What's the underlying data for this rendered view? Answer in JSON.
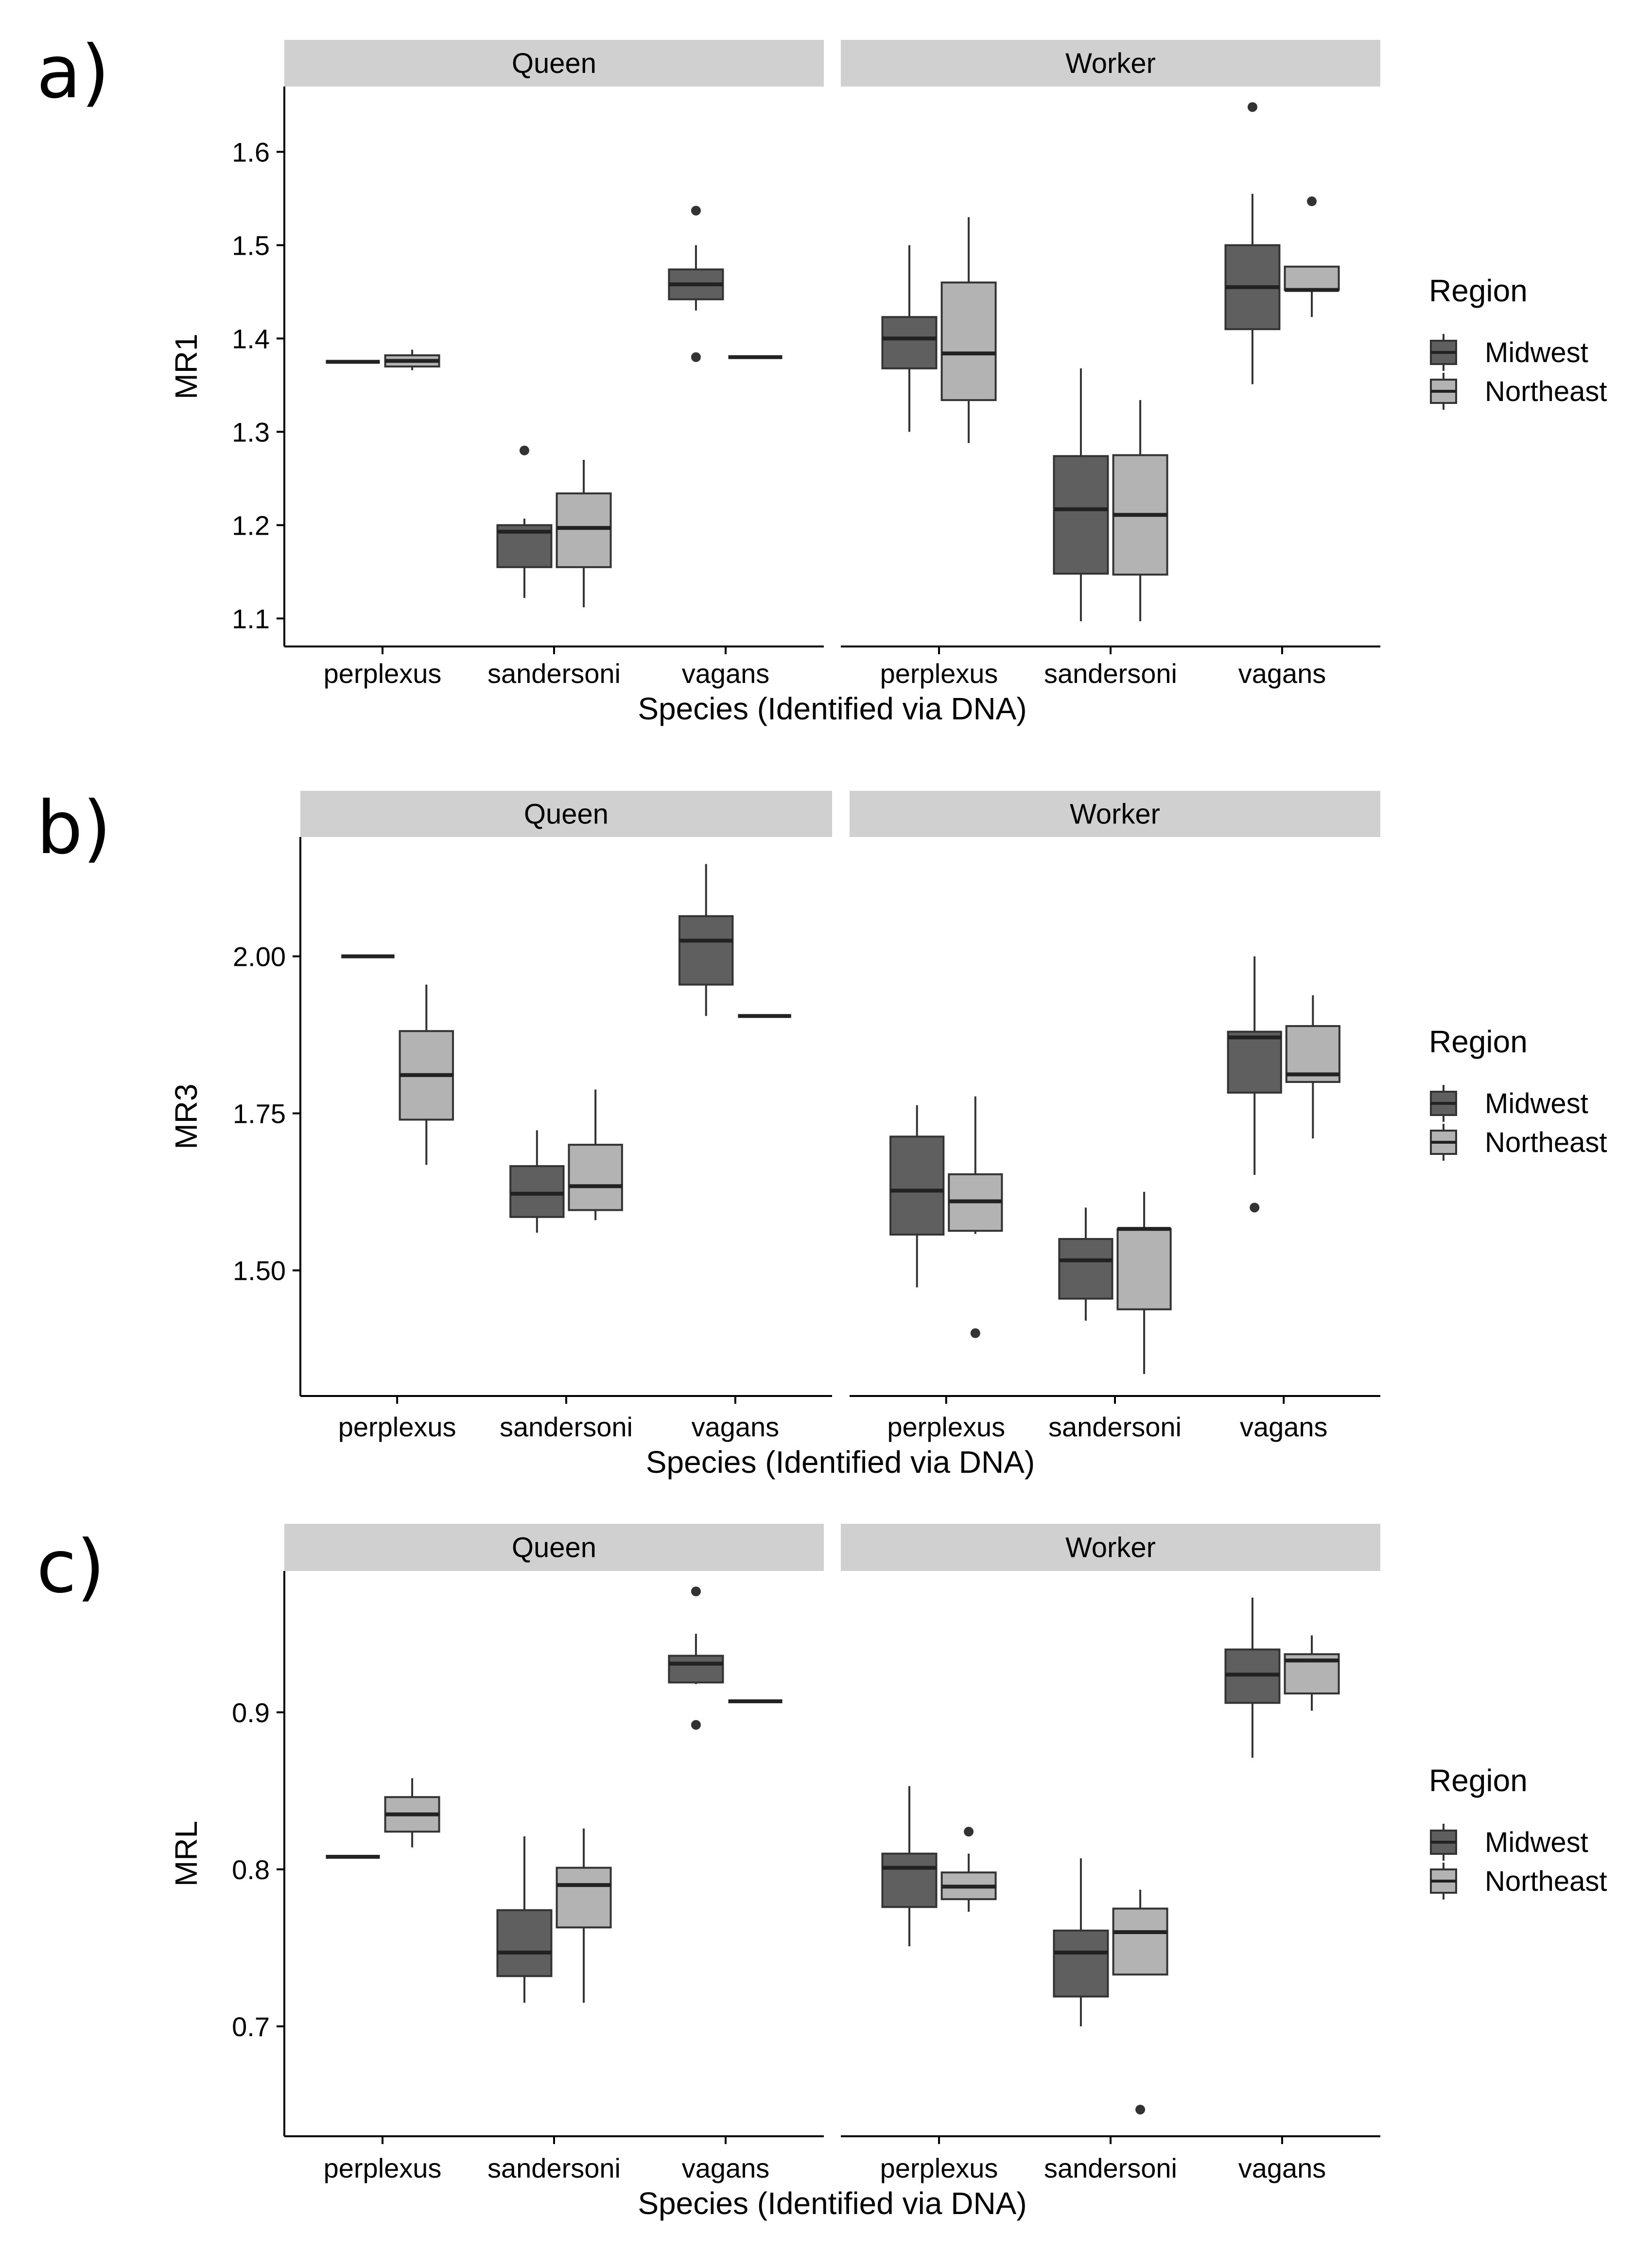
{
  "legend": {
    "title": "Region",
    "entries": [
      {
        "label": "Midwest",
        "color": "#5f5f5f"
      },
      {
        "label": "Northeast",
        "color": "#b3b3b3"
      }
    ]
  },
  "chart_data": [
    {
      "type": "box",
      "panel_label": "a)",
      "ylabel": "MR1",
      "xlabel": "Species (Identified via DNA)",
      "facets": [
        "Queen",
        "Worker"
      ],
      "categories": [
        "perplexus",
        "sandersoni",
        "vagans"
      ],
      "yticks": [
        1.1,
        1.2,
        1.3,
        1.4,
        1.5,
        1.6
      ],
      "ytick_labels": [
        "1.1",
        "1.2",
        "1.3",
        "1.4",
        "1.5",
        "1.6"
      ],
      "ylim": [
        1.07,
        1.67
      ],
      "boxes": [
        {
          "facet": "Queen",
          "category": "perplexus",
          "region": "Midwest",
          "min": 1.375,
          "q1": 1.375,
          "median": 1.375,
          "q3": 1.375,
          "max": 1.375,
          "outliers": []
        },
        {
          "facet": "Queen",
          "category": "perplexus",
          "region": "Northeast",
          "min": 1.366,
          "q1": 1.37,
          "median": 1.376,
          "q3": 1.382,
          "max": 1.388,
          "outliers": []
        },
        {
          "facet": "Queen",
          "category": "sandersoni",
          "region": "Midwest",
          "min": 1.122,
          "q1": 1.155,
          "median": 1.193,
          "q3": 1.2,
          "max": 1.207,
          "outliers": [
            1.28
          ]
        },
        {
          "facet": "Queen",
          "category": "sandersoni",
          "region": "Northeast",
          "min": 1.112,
          "q1": 1.155,
          "median": 1.197,
          "q3": 1.234,
          "max": 1.27,
          "outliers": []
        },
        {
          "facet": "Queen",
          "category": "vagans",
          "region": "Midwest",
          "min": 1.43,
          "q1": 1.442,
          "median": 1.458,
          "q3": 1.474,
          "max": 1.5,
          "outliers": [
            1.537,
            1.38
          ]
        },
        {
          "facet": "Queen",
          "category": "vagans",
          "region": "Northeast",
          "min": 1.38,
          "q1": 1.38,
          "median": 1.38,
          "q3": 1.38,
          "max": 1.38,
          "outliers": []
        },
        {
          "facet": "Worker",
          "category": "perplexus",
          "region": "Midwest",
          "min": 1.3,
          "q1": 1.368,
          "median": 1.4,
          "q3": 1.423,
          "max": 1.5,
          "outliers": []
        },
        {
          "facet": "Worker",
          "category": "perplexus",
          "region": "Northeast",
          "min": 1.288,
          "q1": 1.334,
          "median": 1.384,
          "q3": 1.46,
          "max": 1.53,
          "outliers": []
        },
        {
          "facet": "Worker",
          "category": "sandersoni",
          "region": "Midwest",
          "min": 1.097,
          "q1": 1.148,
          "median": 1.217,
          "q3": 1.274,
          "max": 1.368,
          "outliers": []
        },
        {
          "facet": "Worker",
          "category": "sandersoni",
          "region": "Northeast",
          "min": 1.097,
          "q1": 1.147,
          "median": 1.211,
          "q3": 1.275,
          "max": 1.334,
          "outliers": []
        },
        {
          "facet": "Worker",
          "category": "vagans",
          "region": "Midwest",
          "min": 1.351,
          "q1": 1.41,
          "median": 1.455,
          "q3": 1.5,
          "max": 1.555,
          "outliers": [
            1.648
          ]
        },
        {
          "facet": "Worker",
          "category": "vagans",
          "region": "Northeast",
          "min": 1.423,
          "q1": 1.452,
          "median": 1.452,
          "q3": 1.477,
          "max": 1.477,
          "outliers": [
            1.547
          ]
        }
      ]
    },
    {
      "type": "box",
      "panel_label": "b)",
      "ylabel": "MR3",
      "xlabel": "Species (Identified via DNA)",
      "facets": [
        "Queen",
        "Worker"
      ],
      "categories": [
        "perplexus",
        "sandersoni",
        "vagans"
      ],
      "yticks": [
        1.5,
        1.75,
        2.0
      ],
      "ytick_labels": [
        "1.50",
        "1.75",
        "2.00"
      ],
      "ylim": [
        1.3,
        2.19
      ],
      "boxes": [
        {
          "facet": "Queen",
          "category": "perplexus",
          "region": "Midwest",
          "min": 2.0,
          "q1": 2.0,
          "median": 2.0,
          "q3": 2.0,
          "max": 2.0,
          "outliers": []
        },
        {
          "facet": "Queen",
          "category": "perplexus",
          "region": "Northeast",
          "min": 1.668,
          "q1": 1.74,
          "median": 1.811,
          "q3": 1.881,
          "max": 1.955,
          "outliers": []
        },
        {
          "facet": "Queen",
          "category": "sandersoni",
          "region": "Midwest",
          "min": 1.56,
          "q1": 1.585,
          "median": 1.622,
          "q3": 1.666,
          "max": 1.723,
          "outliers": []
        },
        {
          "facet": "Queen",
          "category": "sandersoni",
          "region": "Northeast",
          "min": 1.58,
          "q1": 1.596,
          "median": 1.634,
          "q3": 1.7,
          "max": 1.788,
          "outliers": []
        },
        {
          "facet": "Queen",
          "category": "vagans",
          "region": "Midwest",
          "min": 1.905,
          "q1": 1.955,
          "median": 2.025,
          "q3": 2.064,
          "max": 2.147,
          "outliers": []
        },
        {
          "facet": "Queen",
          "category": "vagans",
          "region": "Northeast",
          "min": 1.905,
          "q1": 1.905,
          "median": 1.905,
          "q3": 1.905,
          "max": 1.905,
          "outliers": []
        },
        {
          "facet": "Worker",
          "category": "perplexus",
          "region": "Midwest",
          "min": 1.473,
          "q1": 1.557,
          "median": 1.627,
          "q3": 1.713,
          "max": 1.763,
          "outliers": []
        },
        {
          "facet": "Worker",
          "category": "perplexus",
          "region": "Northeast",
          "min": 1.558,
          "q1": 1.563,
          "median": 1.61,
          "q3": 1.653,
          "max": 1.777,
          "outliers": [
            1.4
          ]
        },
        {
          "facet": "Worker",
          "category": "sandersoni",
          "region": "Midwest",
          "min": 1.42,
          "q1": 1.455,
          "median": 1.516,
          "q3": 1.55,
          "max": 1.6,
          "outliers": []
        },
        {
          "facet": "Worker",
          "category": "sandersoni",
          "region": "Northeast",
          "min": 1.335,
          "q1": 1.438,
          "median": 1.566,
          "q3": 1.566,
          "max": 1.625,
          "outliers": []
        },
        {
          "facet": "Worker",
          "category": "vagans",
          "region": "Midwest",
          "min": 1.652,
          "q1": 1.783,
          "median": 1.871,
          "q3": 1.88,
          "max": 2.0,
          "outliers": [
            1.6
          ]
        },
        {
          "facet": "Worker",
          "category": "vagans",
          "region": "Northeast",
          "min": 1.71,
          "q1": 1.8,
          "median": 1.812,
          "q3": 1.889,
          "max": 1.938,
          "outliers": []
        }
      ]
    },
    {
      "type": "box",
      "panel_label": "c)",
      "ylabel": "MRL",
      "xlabel": "Species (Identified via DNA)",
      "facets": [
        "Queen",
        "Worker"
      ],
      "categories": [
        "perplexus",
        "sandersoni",
        "vagans"
      ],
      "yticks": [
        0.7,
        0.8,
        0.9
      ],
      "ytick_labels": [
        "0.7",
        "0.8",
        "0.9"
      ],
      "ylim": [
        0.63,
        0.99
      ],
      "boxes": [
        {
          "facet": "Queen",
          "category": "perplexus",
          "region": "Midwest",
          "min": 0.808,
          "q1": 0.808,
          "median": 0.808,
          "q3": 0.808,
          "max": 0.808,
          "outliers": []
        },
        {
          "facet": "Queen",
          "category": "perplexus",
          "region": "Northeast",
          "min": 0.814,
          "q1": 0.824,
          "median": 0.835,
          "q3": 0.846,
          "max": 0.858,
          "outliers": []
        },
        {
          "facet": "Queen",
          "category": "sandersoni",
          "region": "Midwest",
          "min": 0.715,
          "q1": 0.732,
          "median": 0.747,
          "q3": 0.774,
          "max": 0.821,
          "outliers": []
        },
        {
          "facet": "Queen",
          "category": "sandersoni",
          "region": "Northeast",
          "min": 0.715,
          "q1": 0.763,
          "median": 0.79,
          "q3": 0.801,
          "max": 0.826,
          "outliers": []
        },
        {
          "facet": "Queen",
          "category": "vagans",
          "region": "Midwest",
          "min": 0.918,
          "q1": 0.919,
          "median": 0.931,
          "q3": 0.936,
          "max": 0.95,
          "outliers": [
            0.977,
            0.892
          ]
        },
        {
          "facet": "Queen",
          "category": "vagans",
          "region": "Northeast",
          "min": 0.907,
          "q1": 0.907,
          "median": 0.907,
          "q3": 0.907,
          "max": 0.907,
          "outliers": []
        },
        {
          "facet": "Worker",
          "category": "perplexus",
          "region": "Midwest",
          "min": 0.751,
          "q1": 0.776,
          "median": 0.801,
          "q3": 0.81,
          "max": 0.853,
          "outliers": []
        },
        {
          "facet": "Worker",
          "category": "perplexus",
          "region": "Northeast",
          "min": 0.773,
          "q1": 0.781,
          "median": 0.789,
          "q3": 0.798,
          "max": 0.81,
          "outliers": [
            0.824
          ]
        },
        {
          "facet": "Worker",
          "category": "sandersoni",
          "region": "Midwest",
          "min": 0.7,
          "q1": 0.719,
          "median": 0.747,
          "q3": 0.761,
          "max": 0.807,
          "outliers": []
        },
        {
          "facet": "Worker",
          "category": "sandersoni",
          "region": "Northeast",
          "min": 0.733,
          "q1": 0.733,
          "median": 0.76,
          "q3": 0.775,
          "max": 0.787,
          "outliers": [
            0.647
          ]
        },
        {
          "facet": "Worker",
          "category": "vagans",
          "region": "Midwest",
          "min": 0.871,
          "q1": 0.906,
          "median": 0.924,
          "q3": 0.94,
          "max": 0.973,
          "outliers": []
        },
        {
          "facet": "Worker",
          "category": "vagans",
          "region": "Northeast",
          "min": 0.901,
          "q1": 0.912,
          "median": 0.933,
          "q3": 0.937,
          "max": 0.949,
          "outliers": []
        }
      ]
    }
  ]
}
